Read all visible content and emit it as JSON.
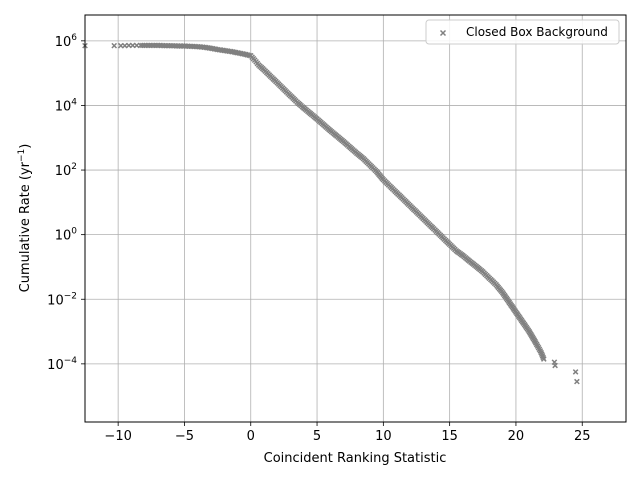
{
  "chart_data": {
    "type": "scatter",
    "xlabel": "Coincident Ranking Statistic",
    "ylabel": "Cumulative Rate (yr",
    "ylabel_sup": "−1",
    "ylabel_close": ")",
    "xlim": [
      -12.5,
      28.3
    ],
    "ylim_log10": [
      -5.8,
      6.8
    ],
    "y_scale": "log",
    "grid": true,
    "legend_position": "top-right",
    "x_ticks": [
      -10,
      -5,
      0,
      5,
      10,
      15,
      20,
      25
    ],
    "x_tick_labels": [
      "−10",
      "−5",
      "0",
      "5",
      "10",
      "15",
      "20",
      "25"
    ],
    "y_ticks_log10": [
      -4,
      -2,
      0,
      2,
      4,
      6
    ],
    "y_tick_labels": [
      {
        "base": "10",
        "exp": "−4"
      },
      {
        "base": "10",
        "exp": "−2"
      },
      {
        "base": "10",
        "exp": "0"
      },
      {
        "base": "10",
        "exp": "2"
      },
      {
        "base": "10",
        "exp": "4"
      },
      {
        "base": "10",
        "exp": "6"
      }
    ],
    "marker": "x",
    "colors": {
      "marker": "#808080",
      "grid": "#b0b0b0",
      "axes": "#000000",
      "legend_border": "#cccccc"
    },
    "series": [
      {
        "name": "Closed Box Background",
        "points_log10": [
          [
            -12.5,
            5.85
          ],
          [
            -10.3,
            5.85
          ],
          [
            -9.8,
            5.85
          ],
          [
            -9.5,
            5.85
          ],
          [
            -9.2,
            5.86
          ],
          [
            -8.9,
            5.86
          ],
          [
            -8.6,
            5.86
          ],
          [
            -8.3,
            5.86
          ],
          [
            -8.0,
            5.86
          ],
          [
            -7.5,
            5.86
          ],
          [
            -7.0,
            5.86
          ],
          [
            -6.5,
            5.85
          ],
          [
            -6.0,
            5.85
          ],
          [
            -5.5,
            5.84
          ],
          [
            -5.0,
            5.84
          ],
          [
            -4.5,
            5.83
          ],
          [
            -4.0,
            5.82
          ],
          [
            -3.5,
            5.8
          ],
          [
            -3.0,
            5.77
          ],
          [
            -2.5,
            5.73
          ],
          [
            -2.0,
            5.7
          ],
          [
            -1.5,
            5.67
          ],
          [
            -1.0,
            5.63
          ],
          [
            -0.5,
            5.59
          ],
          [
            0.0,
            5.54
          ],
          [
            0.3,
            5.4
          ],
          [
            0.6,
            5.25
          ],
          [
            1.0,
            5.1
          ],
          [
            1.5,
            4.9
          ],
          [
            2.0,
            4.7
          ],
          [
            2.5,
            4.5
          ],
          [
            3.0,
            4.3
          ],
          [
            3.5,
            4.1
          ],
          [
            4.0,
            3.92
          ],
          [
            4.5,
            3.75
          ],
          [
            5.0,
            3.58
          ],
          [
            5.5,
            3.4
          ],
          [
            6.0,
            3.22
          ],
          [
            6.5,
            3.05
          ],
          [
            7.0,
            2.88
          ],
          [
            7.5,
            2.7
          ],
          [
            8.0,
            2.52
          ],
          [
            8.5,
            2.35
          ],
          [
            9.0,
            2.15
          ],
          [
            9.5,
            1.95
          ],
          [
            10.0,
            1.7
          ],
          [
            10.5,
            1.5
          ],
          [
            11.0,
            1.3
          ],
          [
            11.5,
            1.1
          ],
          [
            12.0,
            0.9
          ],
          [
            12.5,
            0.7
          ],
          [
            13.0,
            0.5
          ],
          [
            13.5,
            0.3
          ],
          [
            14.0,
            0.1
          ],
          [
            14.5,
            -0.1
          ],
          [
            15.0,
            -0.3
          ],
          [
            15.5,
            -0.5
          ],
          [
            16.0,
            -0.65
          ],
          [
            16.5,
            -0.82
          ],
          [
            17.0,
            -0.98
          ],
          [
            17.5,
            -1.15
          ],
          [
            18.0,
            -1.35
          ],
          [
            18.5,
            -1.55
          ],
          [
            19.0,
            -1.8
          ],
          [
            19.5,
            -2.1
          ],
          [
            20.0,
            -2.4
          ],
          [
            20.5,
            -2.7
          ],
          [
            21.0,
            -3.0
          ],
          [
            21.5,
            -3.35
          ],
          [
            21.9,
            -3.65
          ],
          [
            22.1,
            -3.85
          ],
          [
            22.9,
            -3.95
          ],
          [
            22.95,
            -4.05
          ],
          [
            24.5,
            -4.25
          ],
          [
            24.6,
            -4.55
          ]
        ]
      }
    ]
  }
}
